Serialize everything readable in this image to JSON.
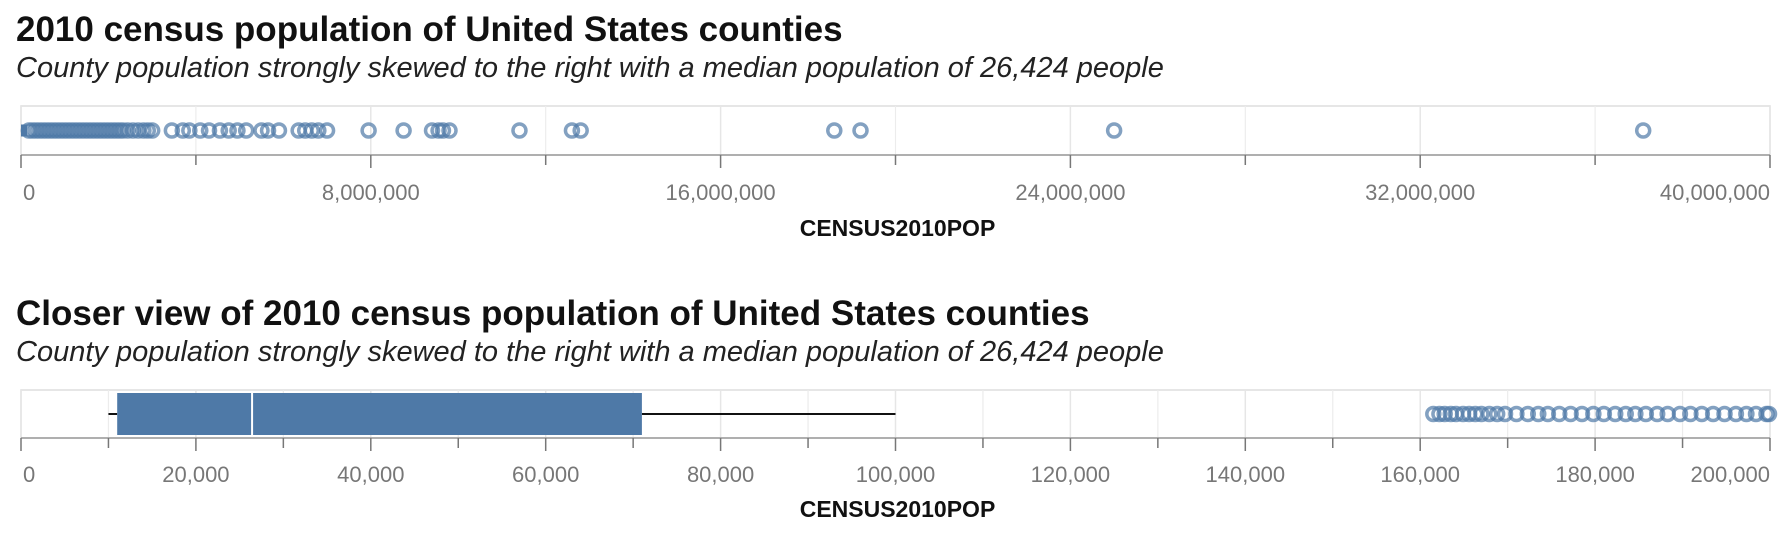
{
  "chart_data": [
    {
      "type": "boxplot",
      "title": "2010 census population of United States counties",
      "subtitle": "County population strongly skewed to the right with a median population of 26,424 people",
      "xlabel": "CENSUS2010POP",
      "xlim": [
        0,
        40000000
      ],
      "xticks": [
        0,
        8000000,
        16000000,
        24000000,
        32000000,
        40000000
      ],
      "xtick_labels": [
        "0",
        "8,000,000",
        "16,000,000",
        "24,000,000",
        "32,000,000",
        "40,000,000"
      ],
      "grid": true,
      "median": 26424,
      "outliers": [
        180000,
        260000,
        340000,
        420000,
        500000,
        580000,
        660000,
        740000,
        820000,
        900000,
        980000,
        1060000,
        1140000,
        1220000,
        1300000,
        1380000,
        1460000,
        1540000,
        1620000,
        1700000,
        1780000,
        1860000,
        1940000,
        2020000,
        2100000,
        2180000,
        2260000,
        2340000,
        2440000,
        2560000,
        2680000,
        2800000,
        2900000,
        3000000,
        3450000,
        3700000,
        3850000,
        4100000,
        4300000,
        4550000,
        4750000,
        4950000,
        5150000,
        5500000,
        5650000,
        5900000,
        6350000,
        6500000,
        6650000,
        6800000,
        7000000,
        7950000,
        8750000,
        9400000,
        9550000,
        9650000,
        9800000,
        11400000,
        12600000,
        12800000,
        18600000,
        19200000,
        25000000,
        37100000
      ]
    },
    {
      "type": "boxplot",
      "title": "Closer view of 2010 census population of United States counties",
      "subtitle": "County population strongly skewed to the right with a median population of 26,424 people",
      "xlabel": "CENSUS2010POP",
      "xlim": [
        0,
        200000
      ],
      "xticks": [
        0,
        20000,
        40000,
        60000,
        80000,
        100000,
        120000,
        140000,
        160000,
        180000,
        200000
      ],
      "xtick_labels": [
        "0",
        "20,000",
        "40,000",
        "60,000",
        "80,000",
        "100,000",
        "120,000",
        "140,000",
        "160,000",
        "180,000",
        "200,000"
      ],
      "grid": true,
      "whisker_low": 10000,
      "q1": 11000,
      "median": 26424,
      "q3": 71000,
      "whisker_high": 100000,
      "outliers": [
        161500,
        162200,
        162800,
        163500,
        164100,
        164900,
        165600,
        166300,
        167000,
        167900,
        168800,
        169700,
        171000,
        172300,
        173500,
        174600,
        175900,
        177200,
        178500,
        179800,
        181000,
        182300,
        183500,
        184600,
        185800,
        187100,
        188300,
        189700,
        190900,
        192200,
        193500,
        194800,
        196100,
        197300,
        198400,
        199600,
        200000
      ]
    }
  ]
}
